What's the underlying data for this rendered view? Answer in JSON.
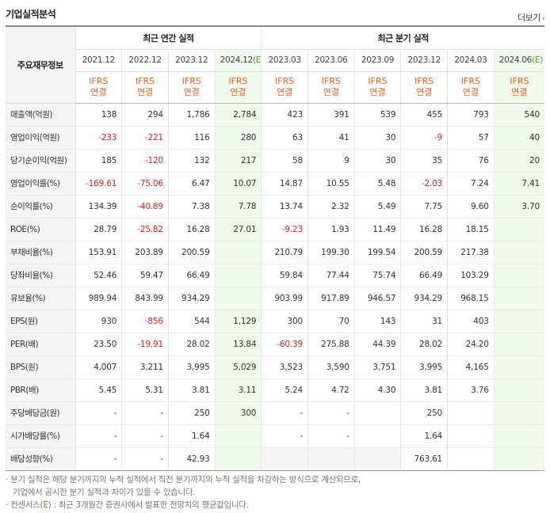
{
  "header": {
    "title": "기업실적분석",
    "more_label": "더보기"
  },
  "table": {
    "corner_label": "주요재무정보",
    "group_annual": "최근 연간 실적",
    "group_quarter": "최근 분기 실적",
    "annual_periods": [
      "2021.12",
      "2022.12",
      "2023.12",
      "2024.12"
    ],
    "annual_estimate_suffix": "(E)",
    "quarter_periods": [
      "2023.03",
      "2023.06",
      "2023.09",
      "2023.12",
      "2024.03",
      "2024.06"
    ],
    "quarter_estimate_suffix": "(E)",
    "standard_top": "IFRS",
    "standard_bottom": "연결",
    "rows": [
      {
        "label": "매출액(억원)",
        "values": [
          "138",
          "294",
          "1,786",
          "2,784",
          "423",
          "391",
          "539",
          "455",
          "793",
          "540"
        ]
      },
      {
        "label": "영업이익(억원)",
        "values": [
          "-233",
          "-221",
          "116",
          "280",
          "63",
          "41",
          "30",
          "-9",
          "57",
          "40"
        ]
      },
      {
        "label": "당기순이익(억원)",
        "values": [
          "185",
          "-120",
          "132",
          "217",
          "58",
          "9",
          "30",
          "35",
          "76",
          "20"
        ]
      },
      {
        "label": "영업이익률(%)",
        "values": [
          "-169.61",
          "-75.06",
          "6.47",
          "10.07",
          "14.87",
          "10.55",
          "5.48",
          "-2.03",
          "7.24",
          "7.41"
        ]
      },
      {
        "label": "순이익률(%)",
        "values": [
          "134.39",
          "-40.89",
          "7.38",
          "7.78",
          "13.74",
          "2.32",
          "5.49",
          "7.75",
          "9.60",
          "3.70"
        ]
      },
      {
        "label": "ROE(%)",
        "values": [
          "28.79",
          "-25.82",
          "16.28",
          "27.01",
          "-9.23",
          "1.93",
          "11.49",
          "16.28",
          "18.15",
          ""
        ]
      },
      {
        "label": "부채비율(%)",
        "values": [
          "153.91",
          "203.89",
          "200.59",
          "",
          "210.79",
          "199.30",
          "199.54",
          "200.59",
          "217.38",
          ""
        ]
      },
      {
        "label": "당좌비율(%)",
        "values": [
          "52.46",
          "59.47",
          "66.49",
          "",
          "59.84",
          "77.44",
          "75.74",
          "66.49",
          "103.29",
          ""
        ]
      },
      {
        "label": "유보율(%)",
        "values": [
          "989.94",
          "843.99",
          "934.29",
          "",
          "903.99",
          "917.89",
          "946.57",
          "934.29",
          "968.15",
          ""
        ]
      },
      {
        "label": "EPS(원)",
        "values": [
          "930",
          "-856",
          "544",
          "1,129",
          "300",
          "70",
          "143",
          "31",
          "403",
          ""
        ]
      },
      {
        "label": "PER(배)",
        "values": [
          "23.50",
          "-19.91",
          "28.02",
          "13.84",
          "-60.39",
          "275.88",
          "44.39",
          "28.02",
          "24.20",
          ""
        ]
      },
      {
        "label": "BPS(원)",
        "values": [
          "4,007",
          "3,211",
          "3,995",
          "5,029",
          "3,523",
          "3,590",
          "3,751",
          "3,995",
          "4,165",
          ""
        ]
      },
      {
        "label": "PBR(배)",
        "values": [
          "5.45",
          "5.31",
          "3.81",
          "3.11",
          "5.24",
          "4.72",
          "4.30",
          "3.81",
          "3.76",
          ""
        ]
      },
      {
        "label": "주당배당금(원)",
        "values": [
          "-",
          "-",
          "250",
          "300",
          "-",
          "-",
          "",
          "250",
          "",
          ""
        ]
      },
      {
        "label": "시가배당률(%)",
        "values": [
          "-",
          "-",
          "1.64",
          "",
          "-",
          "-",
          "",
          "1.64",
          "",
          ""
        ]
      },
      {
        "label": "배당성향(%)",
        "values": [
          "-",
          "-",
          "42.93",
          "",
          "",
          "",
          "",
          "763.61",
          "",
          ""
        ]
      }
    ]
  },
  "notes": {
    "line1": "· 분기 실적은 해당 분기까지의 누적 실적에서 직전 분기까지의 누적 실적을 차감하는 방식으로 계산되므로,",
    "line2": "기업에서 공시한 분기 실적과 차이가 있을 수 있습니다.",
    "line3_pre": "· 컨센서스(",
    "line3_e": "E",
    "line3_post": ") : 최근 3개월간 증권사에서 발표한 전망치의 평균값입니다."
  },
  "colors": {
    "negative": "#e02020",
    "ifrs": "#ef5f1c",
    "estimate_bg": "#f1f9ee",
    "estimate_mark": "#5aa02c"
  }
}
